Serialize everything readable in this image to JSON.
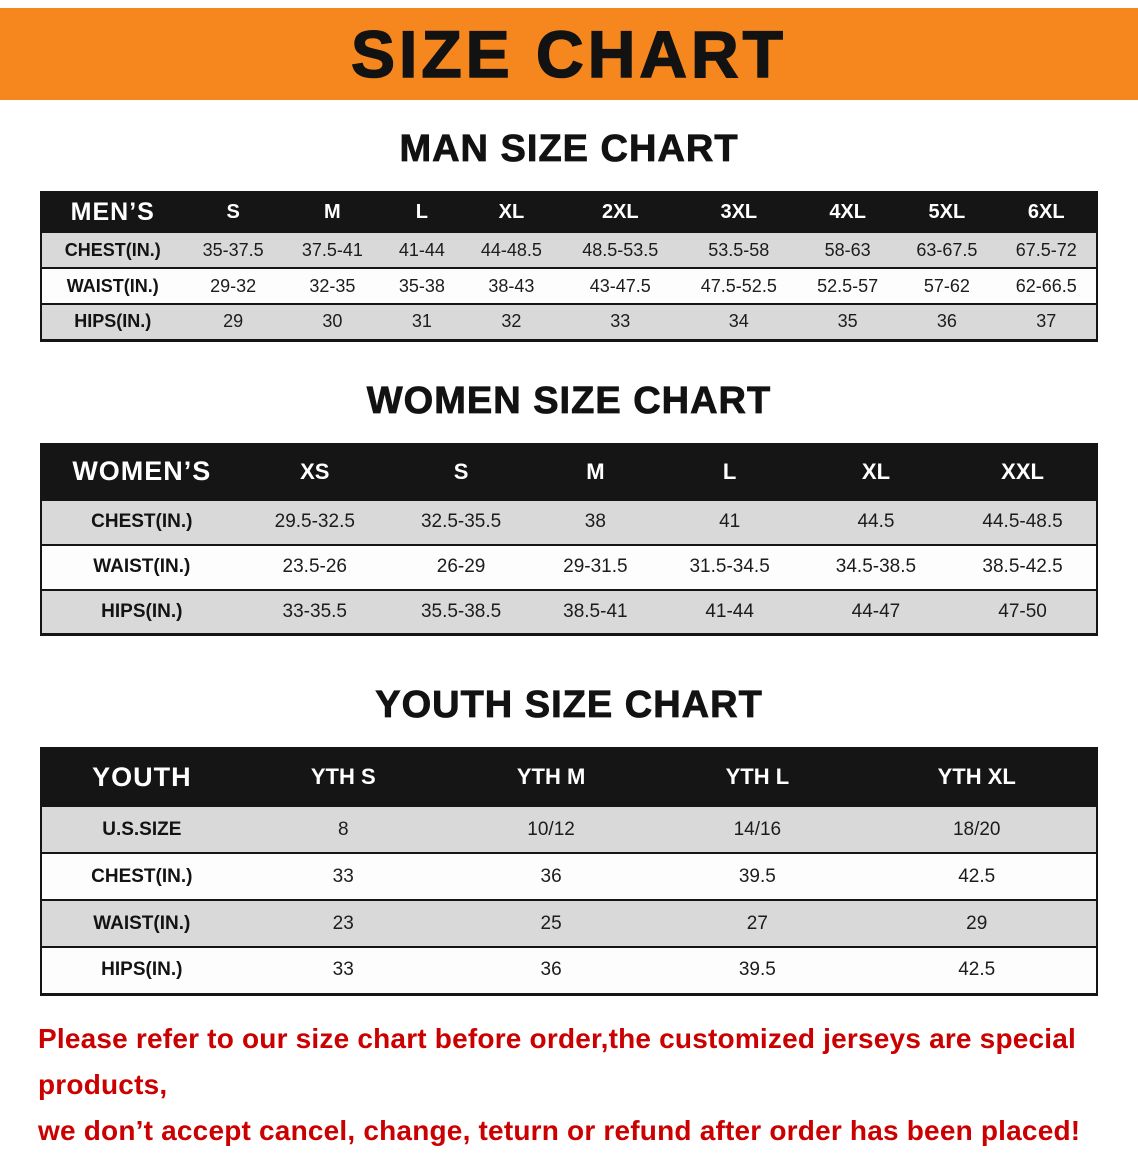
{
  "banner": {
    "title": "SIZE CHART"
  },
  "men": {
    "heading": "MAN SIZE CHART",
    "header": [
      "MEN’S",
      "S",
      "M",
      "L",
      "XL",
      "2XL",
      "3XL",
      "4XL",
      "5XL",
      "6XL"
    ],
    "rows": [
      {
        "label": "CHEST(IN.)",
        "values": [
          "35-37.5",
          "37.5-41",
          "41-44",
          "44-48.5",
          "48.5-53.5",
          "53.5-58",
          "58-63",
          "63-67.5",
          "67.5-72"
        ]
      },
      {
        "label": "WAIST(IN.)",
        "values": [
          "29-32",
          "32-35",
          "35-38",
          "38-43",
          "43-47.5",
          "47.5-52.5",
          "52.5-57",
          "57-62",
          "62-66.5"
        ]
      },
      {
        "label": "HIPS(IN.)",
        "values": [
          "29",
          "30",
          "31",
          "32",
          "33",
          "34",
          "35",
          "36",
          "37"
        ]
      }
    ]
  },
  "women": {
    "heading": "WOMEN SIZE CHART",
    "header": [
      "WOMEN’S",
      "XS",
      "S",
      "M",
      "L",
      "XL",
      "XXL"
    ],
    "rows": [
      {
        "label": "CHEST(IN.)",
        "values": [
          "29.5-32.5",
          "32.5-35.5",
          "38",
          "41",
          "44.5",
          "44.5-48.5"
        ]
      },
      {
        "label": "WAIST(IN.)",
        "values": [
          "23.5-26",
          "26-29",
          "29-31.5",
          "31.5-34.5",
          "34.5-38.5",
          "38.5-42.5"
        ]
      },
      {
        "label": "HIPS(IN.)",
        "values": [
          "33-35.5",
          "35.5-38.5",
          "38.5-41",
          "41-44",
          "44-47",
          "47-50"
        ]
      }
    ]
  },
  "youth": {
    "heading": "YOUTH SIZE CHART",
    "header": [
      "YOUTH",
      "YTH S",
      "YTH M",
      "YTH L",
      "YTH XL"
    ],
    "rows": [
      {
        "label": "U.S.SIZE",
        "values": [
          "8",
          "10/12",
          "14/16",
          "18/20"
        ]
      },
      {
        "label": "CHEST(IN.)",
        "values": [
          "33",
          "36",
          "39.5",
          "42.5"
        ]
      },
      {
        "label": "WAIST(IN.)",
        "values": [
          "23",
          "25",
          "27",
          "29"
        ]
      },
      {
        "label": "HIPS(IN.)",
        "values": [
          "33",
          "36",
          "39.5",
          "42.5"
        ]
      }
    ]
  },
  "disclaimer": {
    "line1": "Please refer to our size chart before order,the customized jerseys are special products,",
    "line2": "we don’t accept cancel, change, teturn or refund after order has been placed!"
  },
  "colors": {
    "banner_orange": "#f6871f",
    "header_black": "#151515",
    "row_gray": "#d9d9d9",
    "disclaimer_red": "#cb0000"
  }
}
